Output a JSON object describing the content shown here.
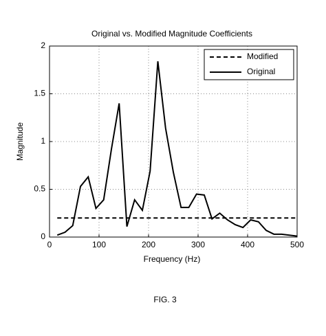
{
  "chart_data": {
    "type": "line",
    "title": "Original vs. Modified Magnitude Coefficients",
    "x_label": "Frequency (Hz)",
    "y_label": "Magnitude",
    "caption": "FIG. 3",
    "x": [
      15.625,
      31.25,
      46.875,
      62.5,
      78.125,
      93.75,
      109.375,
      125,
      140.625,
      156.25,
      171.875,
      187.5,
      203.125,
      218.75,
      234.375,
      250,
      265.625,
      281.25,
      296.875,
      312.5,
      328.125,
      343.75,
      359.375,
      375,
      390.625,
      406.25,
      421.875,
      437.5,
      453.125,
      468.75,
      484.375,
      500
    ],
    "series": [
      {
        "name": "Modified",
        "color": "#000000",
        "dash": true,
        "values": [
          0.2,
          0.2,
          0.2,
          0.2,
          0.2,
          0.2,
          0.2,
          0.2,
          0.2,
          0.2,
          0.2,
          0.2,
          0.2,
          0.2,
          0.2,
          0.2,
          0.2,
          0.2,
          0.2,
          0.2,
          0.2,
          0.2,
          0.2,
          0.2,
          0.2,
          0.2,
          0.2,
          0.2,
          0.2,
          0.2,
          0.2,
          0.2
        ]
      },
      {
        "name": "Original",
        "color": "#000000",
        "dash": false,
        "values": [
          0.02,
          0.05,
          0.12,
          0.53,
          0.63,
          0.3,
          0.39,
          0.92,
          1.4,
          0.11,
          0.39,
          0.28,
          0.69,
          1.84,
          1.14,
          0.68,
          0.31,
          0.31,
          0.45,
          0.44,
          0.19,
          0.25,
          0.18,
          0.13,
          0.1,
          0.18,
          0.16,
          0.07,
          0.03,
          0.03,
          0.02,
          0.01
        ]
      }
    ],
    "xlim": [
      0,
      500
    ],
    "xticks": [
      0,
      100,
      200,
      300,
      400,
      500
    ],
    "ylim": [
      0,
      2
    ],
    "yticks": [
      0,
      0.5,
      1,
      1.5,
      2
    ],
    "grid": true,
    "legend": "upper right"
  }
}
